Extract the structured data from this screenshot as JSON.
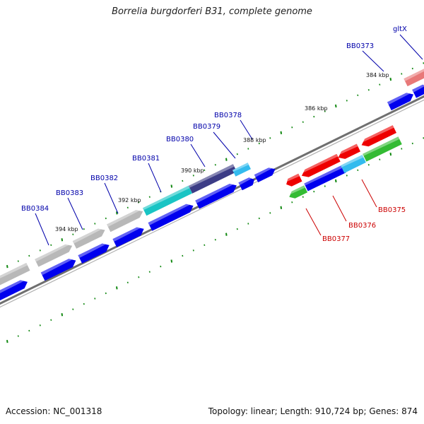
{
  "title": "Borrelia burgdorferi B31, complete genome",
  "footer": {
    "accession": "Accession: NC_001318",
    "summary": "Topology: linear; Length: 910,724 bp; Genes: 874"
  },
  "colors": {
    "cds_blue": "#0000ee",
    "gray_gene": "#b8b8b8",
    "cyan_gene": "#19c4c4",
    "navy_gene": "#3c3c86",
    "red_gene": "#ee0000",
    "green_gene": "#33bb33",
    "pink_gene": "#e87878",
    "light_blue_gene": "#33bbee",
    "tick_green": "#118811",
    "backbone_gray": "#808080",
    "label_blue": "#0000aa",
    "label_red": "#cc0000"
  },
  "tick_labels": [
    {
      "id": "384",
      "text": "384 kbp"
    },
    {
      "id": "386",
      "text": "386 kbp"
    },
    {
      "id": "388",
      "text": "388 kbp"
    },
    {
      "id": "390",
      "text": "390 kbp"
    },
    {
      "id": "392",
      "text": "392 kbp"
    },
    {
      "id": "394",
      "text": "394 kbp"
    }
  ],
  "gene_labels": [
    {
      "id": "gltX",
      "text": "gltX",
      "strand": "top"
    },
    {
      "id": "BB0373",
      "text": "BB0373",
      "strand": "top"
    },
    {
      "id": "BB0378",
      "text": "BB0378",
      "strand": "top"
    },
    {
      "id": "BB0379",
      "text": "BB0379",
      "strand": "top"
    },
    {
      "id": "BB0380",
      "text": "BB0380",
      "strand": "top"
    },
    {
      "id": "BB0381",
      "text": "BB0381",
      "strand": "top"
    },
    {
      "id": "BB0382",
      "text": "BB0382",
      "strand": "top"
    },
    {
      "id": "BB0383",
      "text": "BB0383",
      "strand": "top"
    },
    {
      "id": "BB0384",
      "text": "BB0384",
      "strand": "top"
    },
    {
      "id": "BB0375",
      "text": "BB0375",
      "strand": "bottom"
    },
    {
      "id": "BB0376",
      "text": "BB0376",
      "strand": "bottom"
    },
    {
      "id": "BB0377",
      "text": "BB0377",
      "strand": "bottom"
    }
  ]
}
